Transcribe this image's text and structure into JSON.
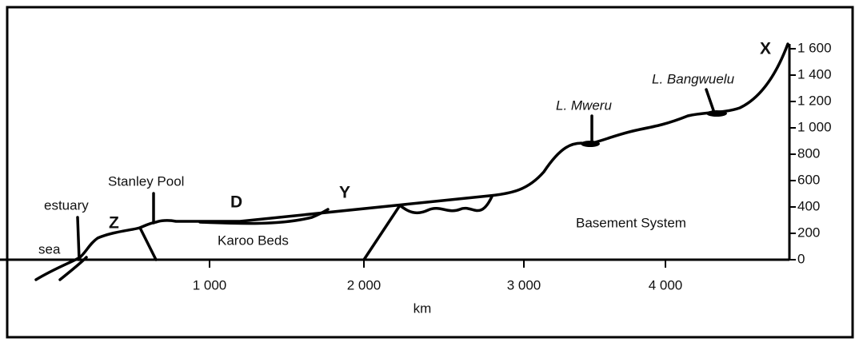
{
  "x_axis": {
    "title": "km",
    "ticks": [
      "1 000",
      "2 000",
      "3 000",
      "4 000"
    ]
  },
  "y_axis": {
    "ticks": [
      "0",
      "200",
      "400",
      "600",
      "800",
      "1 000",
      "1 200",
      "1 400",
      "1 600"
    ]
  },
  "annotations": {
    "sea": "sea",
    "estuary": "estuary",
    "z": "Z",
    "stanley_pool": "Stanley Pool",
    "d": "D",
    "karoo_beds": "Karoo Beds",
    "y": "Y",
    "l_mweru": "L. Mweru",
    "l_bangwuelu": "L. Bangwuelu",
    "x": "X",
    "basement_system": "Basement System"
  }
}
